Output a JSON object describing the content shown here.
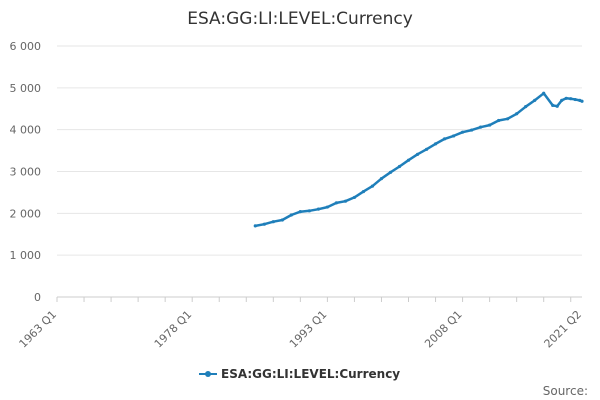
{
  "chart_data": {
    "type": "line",
    "title": "ESA:GG:LI:LEVEL:Currency",
    "xlabel": "",
    "ylabel": "",
    "x_tick_labels": [
      "1963 Q1",
      "1978 Q1",
      "1993 Q1",
      "2008 Q1",
      "2021 Q2"
    ],
    "y_tick_labels": [
      "0",
      "1 000",
      "2 000",
      "3 000",
      "4 000",
      "5 000",
      "6 000"
    ],
    "y_ticks": [
      0,
      1000,
      2000,
      3000,
      4000,
      5000,
      6000
    ],
    "ylim": [
      0,
      6000
    ],
    "xlim": [
      "1963 Q1",
      "2021 Q2"
    ],
    "grid": "horizontal",
    "legend_position": "bottom",
    "series": [
      {
        "name": "ESA:GG:LI:LEVEL:Currency",
        "color": "#1f7fba",
        "x": [
          "1985 Q1",
          "1986 Q1",
          "1987 Q1",
          "1988 Q1",
          "1989 Q1",
          "1990 Q1",
          "1991 Q1",
          "1992 Q1",
          "1993 Q1",
          "1994 Q1",
          "1995 Q1",
          "1996 Q1",
          "1997 Q1",
          "1998 Q1",
          "1999 Q1",
          "2000 Q1",
          "2001 Q1",
          "2002 Q1",
          "2003 Q1",
          "2004 Q1",
          "2005 Q1",
          "2006 Q1",
          "2007 Q1",
          "2008 Q1",
          "2009 Q1",
          "2010 Q1",
          "2011 Q1",
          "2012 Q1",
          "2013 Q1",
          "2014 Q1",
          "2015 Q1",
          "2016 Q1",
          "2017 Q1",
          "2018 Q1",
          "2018 Q3",
          "2019 Q1",
          "2019 Q3",
          "2020 Q1",
          "2020 Q3",
          "2021 Q1",
          "2021 Q2"
        ],
        "values": [
          1700,
          1740,
          1800,
          1840,
          1960,
          2040,
          2060,
          2100,
          2150,
          2250,
          2290,
          2380,
          2520,
          2650,
          2830,
          2980,
          3120,
          3270,
          3410,
          3530,
          3660,
          3780,
          3850,
          3940,
          3990,
          4060,
          4110,
          4220,
          4260,
          4380,
          4550,
          4700,
          4870,
          4580,
          4560,
          4700,
          4750,
          4740,
          4720,
          4700,
          4680
        ]
      }
    ]
  },
  "source_label": "Source:"
}
